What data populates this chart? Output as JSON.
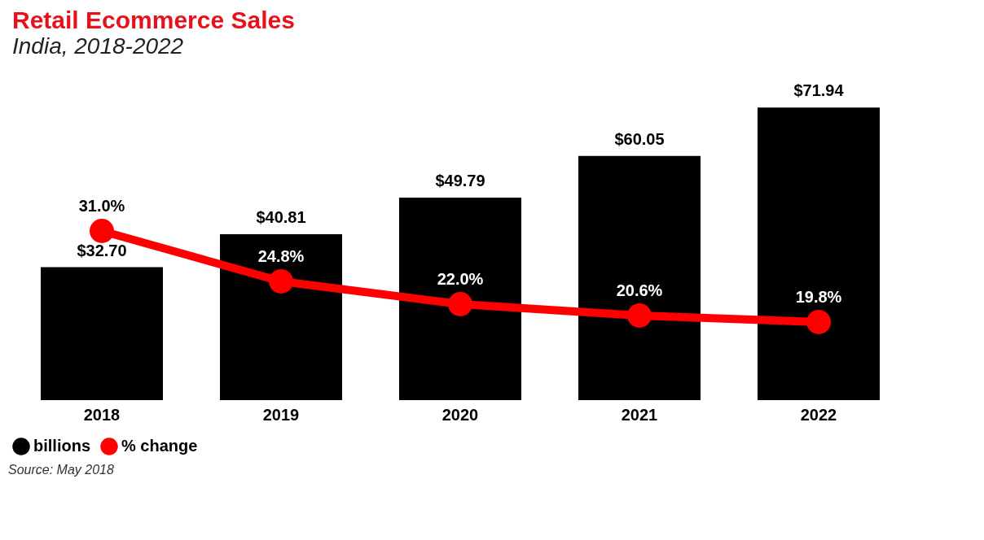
{
  "chart_data": {
    "type": "bar",
    "title": "Retail Ecommerce Sales",
    "subtitle": "India, 2018-2022",
    "categories": [
      "2018",
      "2019",
      "2020",
      "2021",
      "2022"
    ],
    "series": [
      {
        "name": "billions",
        "type": "bar",
        "color": "#000000",
        "values": [
          32.7,
          40.81,
          49.79,
          60.05,
          71.94
        ],
        "value_labels": [
          "$32.70",
          "$40.81",
          "$49.79",
          "$60.05",
          "$71.94"
        ]
      },
      {
        "name": "% change",
        "type": "line",
        "axis": "y2",
        "color": "#ff0000",
        "values": [
          31.0,
          24.8,
          22.0,
          20.6,
          19.8
        ],
        "value_labels": [
          "31.0%",
          "24.8%",
          "22.0%",
          "20.6%",
          "19.8%"
        ]
      }
    ],
    "tick_labels": "x",
    "grid": false,
    "legend": "bottom",
    "marker": "circle",
    "annotations": [
      "Source: May 2018"
    ]
  }
}
